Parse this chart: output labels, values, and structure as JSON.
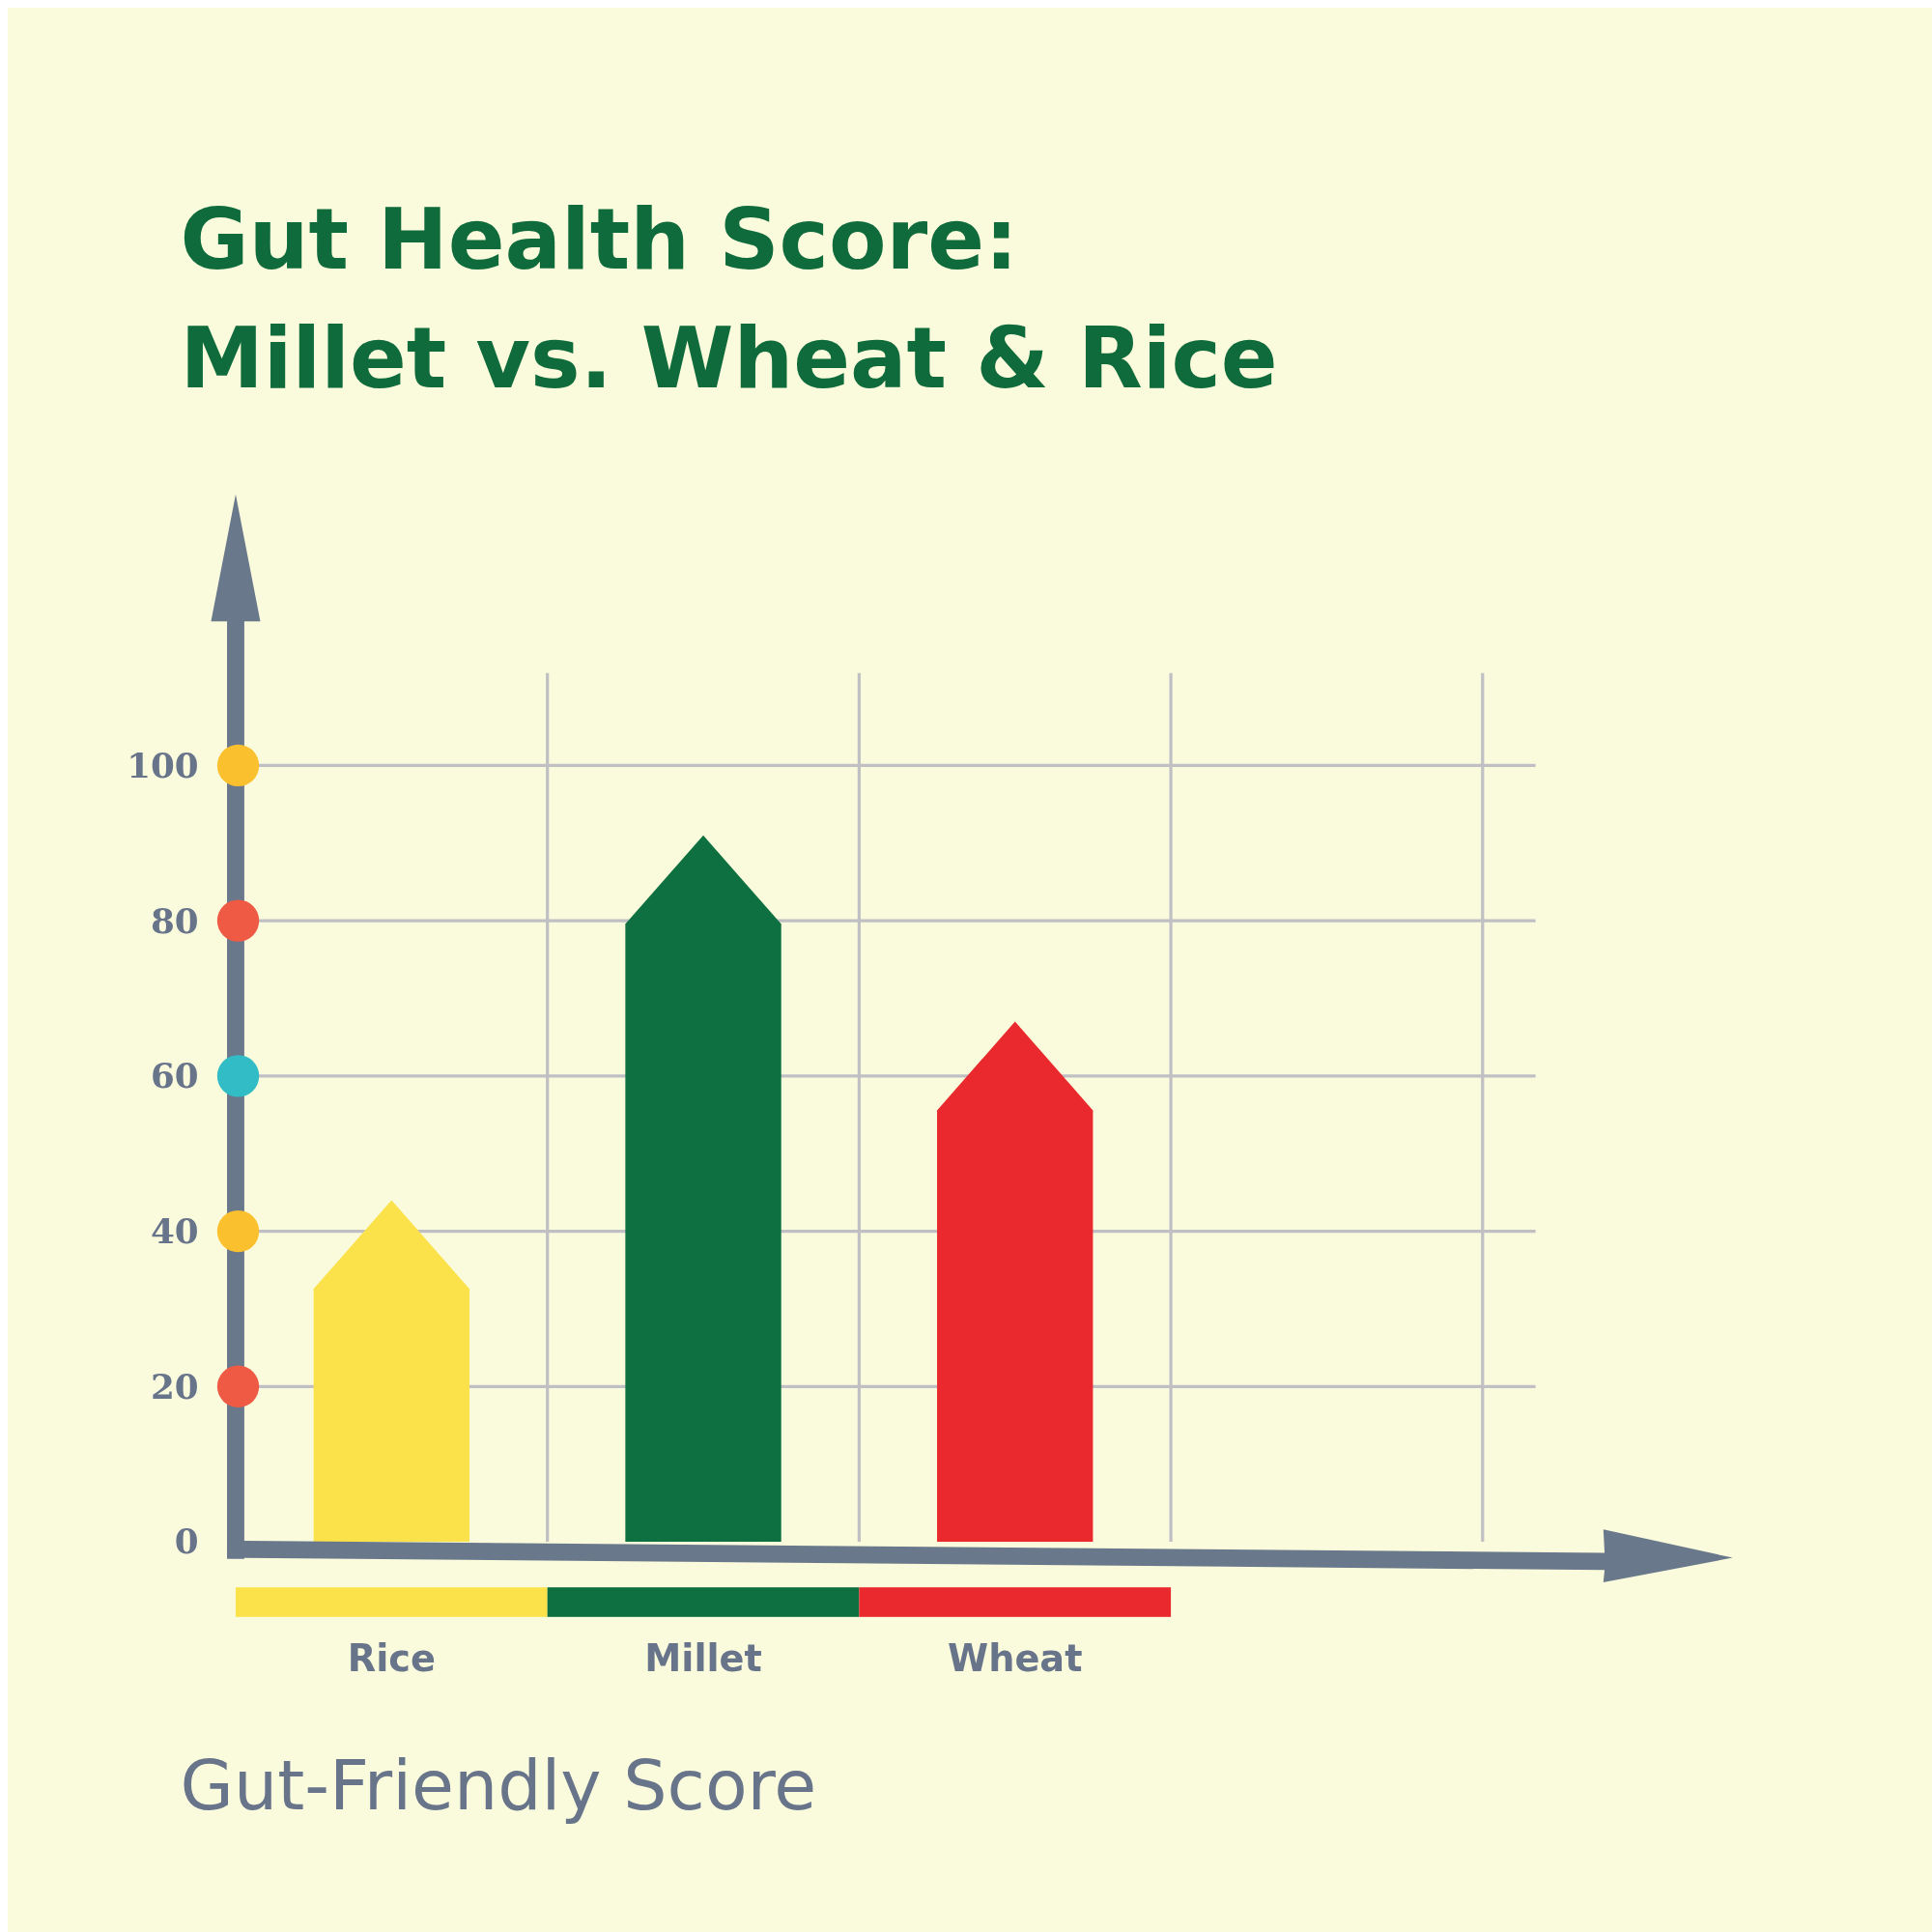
{
  "chart_data": {
    "type": "bar",
    "title": "Gut Health Score:\nMillet vs. Wheat & Rice",
    "xlabel": "Gut-Friendly Score",
    "categories": [
      "Rice",
      "Millet",
      "Wheat"
    ],
    "values": [
      44,
      91,
      67
    ],
    "colors": [
      "#fce24a",
      "#0e7040",
      "#e9292d"
    ],
    "ylim": [
      0,
      100
    ],
    "yticks": [
      0,
      20,
      40,
      60,
      80,
      100
    ],
    "grid": true
  }
}
